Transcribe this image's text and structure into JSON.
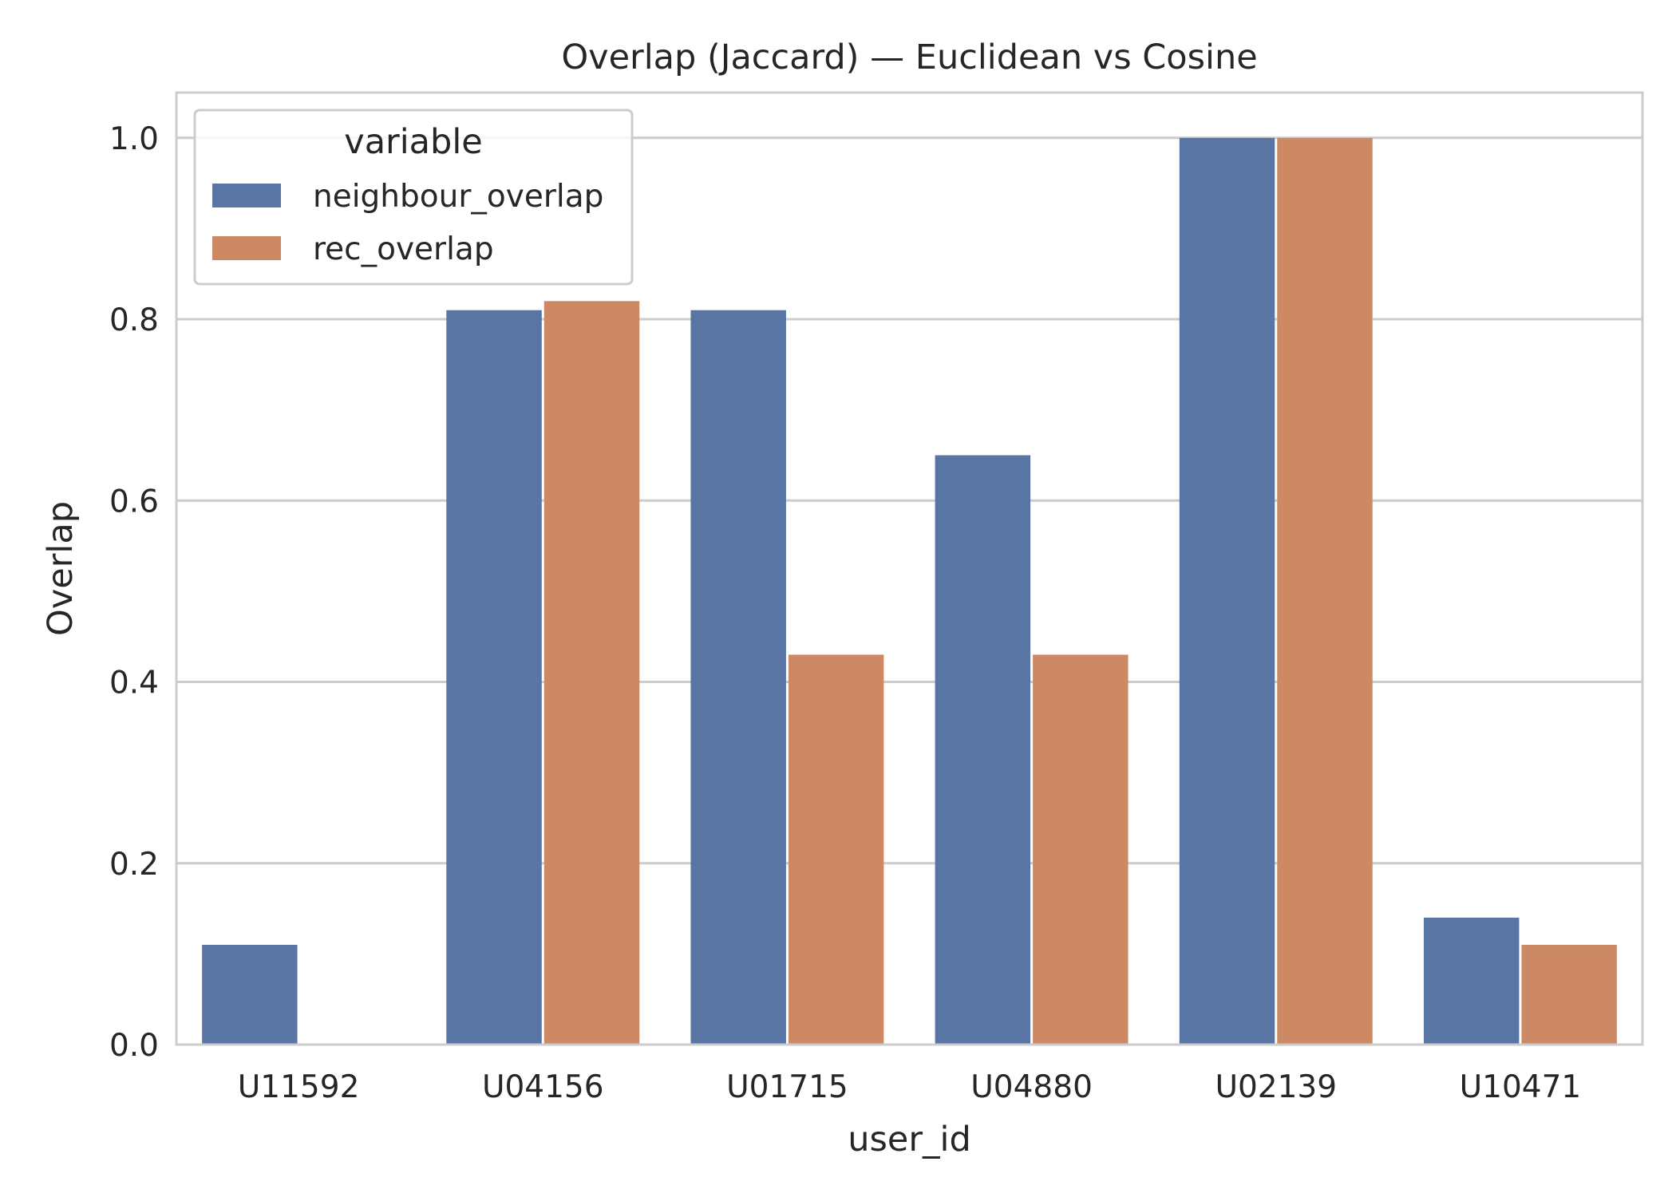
{
  "chart_data": {
    "type": "bar",
    "title": "Overlap (Jaccard) — Euclidean vs Cosine",
    "xlabel": "user_id",
    "ylabel": "Overlap",
    "categories": [
      "U11592",
      "U04156",
      "U01715",
      "U04880",
      "U02139",
      "U10471"
    ],
    "series": [
      {
        "name": "neighbour_overlap",
        "color": "#5875a4",
        "values": [
          0.11,
          0.81,
          0.81,
          0.65,
          1.0,
          0.14
        ]
      },
      {
        "name": "rec_overlap",
        "color": "#cc8963",
        "values": [
          0.0,
          0.82,
          0.43,
          0.43,
          1.0,
          0.11
        ]
      }
    ],
    "ylim": [
      0,
      1.05
    ],
    "yticks": [
      0.0,
      0.2,
      0.4,
      0.6,
      0.8,
      1.0
    ],
    "ytick_labels": [
      "0.0",
      "0.2",
      "0.4",
      "0.6",
      "0.8",
      "1.0"
    ],
    "grid": "horizontal",
    "legend": {
      "title": "variable",
      "placement": "top-left"
    }
  }
}
